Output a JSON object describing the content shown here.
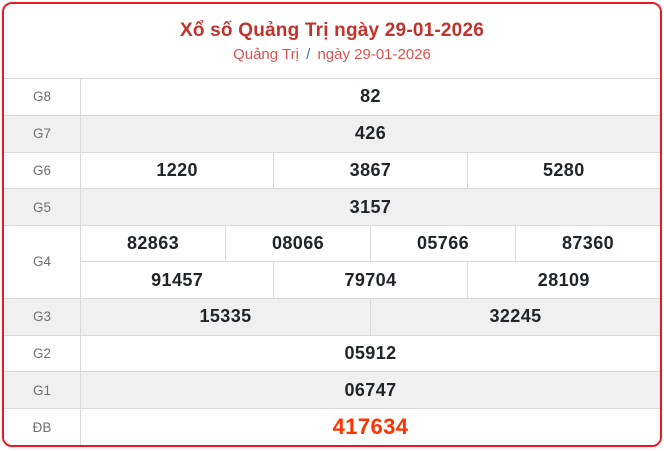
{
  "header": {
    "title": "Xổ số Quảng Trị ngày 29-01-2026",
    "breadcrumb": {
      "region": "Quảng Trị",
      "separator": "/",
      "date": "ngày 29-01-2026"
    }
  },
  "table": {
    "rows": [
      {
        "label": "G8",
        "groups": [
          [
            "82"
          ]
        ]
      },
      {
        "label": "G7",
        "groups": [
          [
            "426"
          ]
        ]
      },
      {
        "label": "G6",
        "groups": [
          [
            "1220",
            "3867",
            "5280"
          ]
        ]
      },
      {
        "label": "G5",
        "groups": [
          [
            "3157"
          ]
        ]
      },
      {
        "label": "G4",
        "groups": [
          [
            "82863",
            "08066",
            "05766",
            "87360"
          ],
          [
            "91457",
            "79704",
            "28109"
          ]
        ]
      },
      {
        "label": "G3",
        "groups": [
          [
            "15335",
            "32245"
          ]
        ]
      },
      {
        "label": "G2",
        "groups": [
          [
            "05912"
          ]
        ]
      },
      {
        "label": "G1",
        "groups": [
          [
            "06747"
          ]
        ]
      },
      {
        "label": "ĐB",
        "groups": [
          [
            "417634"
          ]
        ],
        "highlight": true
      }
    ]
  },
  "colors": {
    "card_border": "#e8191f",
    "title_red": "#c0322c",
    "breadcrumb_red": "#d9534f",
    "breadcrumb_separator_blue": "#337ab7",
    "number_dark": "#212529",
    "special_prize_red": "#ff3300",
    "alt_row_gray": "#f0f0f1",
    "grid_line_gray": "#d9d9d9",
    "label_gray": "#6f6f6f"
  }
}
